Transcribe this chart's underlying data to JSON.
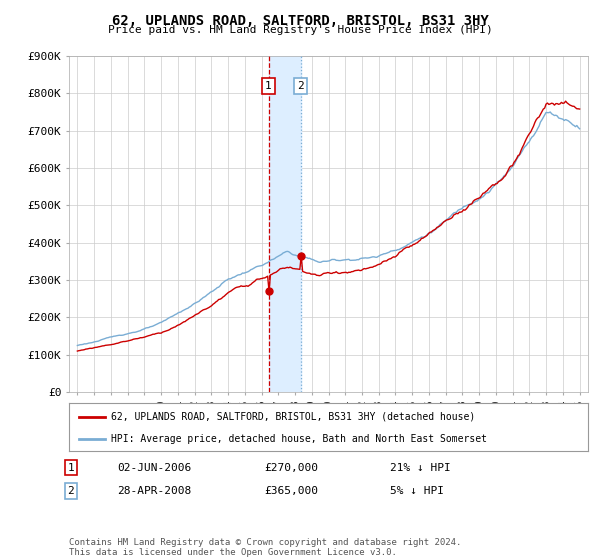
{
  "title": "62, UPLANDS ROAD, SALTFORD, BRISTOL, BS31 3HY",
  "subtitle": "Price paid vs. HM Land Registry's House Price Index (HPI)",
  "red_label": "62, UPLANDS ROAD, SALTFORD, BRISTOL, BS31 3HY (detached house)",
  "blue_label": "HPI: Average price, detached house, Bath and North East Somerset",
  "transaction1_date": "02-JUN-2006",
  "transaction1_price": "£270,000",
  "transaction1_hpi": "21% ↓ HPI",
  "transaction1_year": 2006.42,
  "transaction1_value": 270000,
  "transaction2_date": "28-APR-2008",
  "transaction2_price": "£365,000",
  "transaction2_hpi": "5% ↓ HPI",
  "transaction2_year": 2008.33,
  "transaction2_value": 365000,
  "footer": "Contains HM Land Registry data © Crown copyright and database right 2024.\nThis data is licensed under the Open Government Licence v3.0.",
  "ylim": [
    0,
    900000
  ],
  "yticks": [
    0,
    100000,
    200000,
    300000,
    400000,
    500000,
    600000,
    700000,
    800000,
    900000
  ],
  "ytick_labels": [
    "£0",
    "£100K",
    "£200K",
    "£300K",
    "£400K",
    "£500K",
    "£600K",
    "£700K",
    "£800K",
    "£900K"
  ],
  "xlim": [
    1994.5,
    2025.5
  ],
  "bg_color": "#ffffff",
  "grid_color": "#cccccc",
  "red_color": "#cc0000",
  "blue_color": "#7aadd4",
  "shade_color": "#ddeeff",
  "vline1_color": "#cc0000",
  "vline2_color": "#7aadd4",
  "box1_color": "#cc0000",
  "box2_color": "#7aadd4",
  "footer_color": "#555555"
}
